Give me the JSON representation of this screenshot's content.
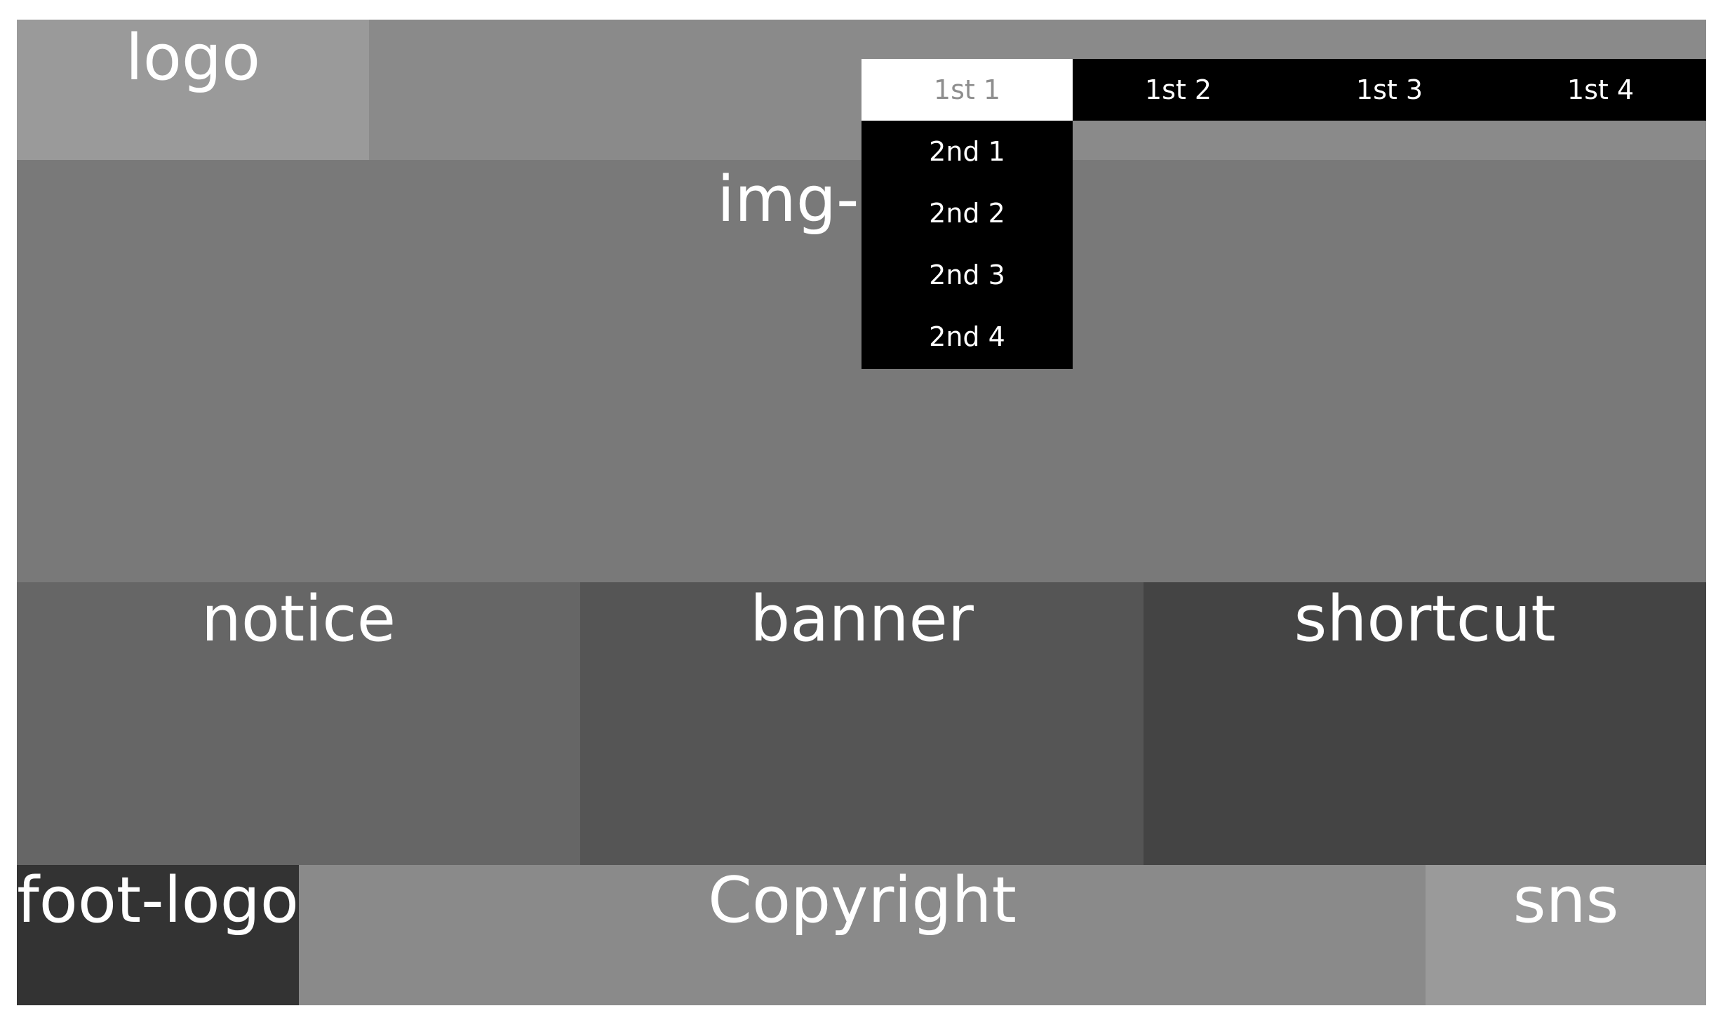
{
  "header": {
    "logo": "logo"
  },
  "nav": {
    "items": [
      {
        "label": "1st 1",
        "active": true
      },
      {
        "label": "1st 2",
        "active": false
      },
      {
        "label": "1st 3",
        "active": false
      },
      {
        "label": "1st 4",
        "active": false
      }
    ],
    "submenu": [
      "2nd 1",
      "2nd 2",
      "2nd 3",
      "2nd 4"
    ]
  },
  "visual": {
    "label": "img-slide"
  },
  "content": {
    "notice": "notice",
    "banner": "banner",
    "shortcut": "shortcut"
  },
  "footer": {
    "foot_logo": "foot-logo",
    "copyright": "Copyright",
    "sns": "sns"
  },
  "colors": {
    "header_bg": "#8a8a8a",
    "logo_bg": "#9a9a9a",
    "visual_bg": "#797979",
    "notice_bg": "#666666",
    "banner_bg": "#555555",
    "shortcut_bg": "#444444",
    "foot_logo_bg": "#333333",
    "nav_bg": "#000000",
    "nav_active_bg": "#ffffff",
    "nav_active_text": "#8e8e8e"
  }
}
